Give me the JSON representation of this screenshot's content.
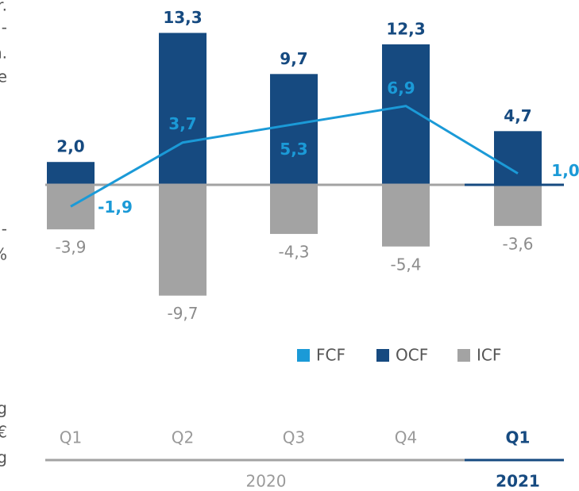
{
  "chart_data": {
    "type": "bar",
    "categories": [
      "Q1",
      "Q2",
      "Q3",
      "Q4",
      "Q1"
    ],
    "groups": [
      {
        "label": "2020",
        "span": [
          0,
          3
        ]
      },
      {
        "label": "2021",
        "span": [
          4,
          4
        ]
      }
    ],
    "series": [
      {
        "name": "FCF",
        "color": "#1b9ad7",
        "kind": "line",
        "values": [
          -1.9,
          3.7,
          5.3,
          6.9,
          1.0
        ],
        "value_labels": [
          "-1,9",
          "3,7",
          "5,3",
          "6,9",
          "1,0"
        ]
      },
      {
        "name": "OCF",
        "color": "#164a80",
        "kind": "bar",
        "values": [
          2.0,
          13.3,
          9.7,
          12.3,
          4.7
        ],
        "value_labels": [
          "2,0",
          "13,3",
          "9,7",
          "12,3",
          "4,7"
        ]
      },
      {
        "name": "ICF",
        "color": "#a3a3a3",
        "kind": "bar",
        "values": [
          -3.9,
          -9.7,
          -4.3,
          -5.4,
          -3.6
        ],
        "value_labels": [
          "-3,9",
          "-9,7",
          "-4,3",
          "-5,4",
          "-3,6"
        ]
      }
    ],
    "ylim": [
      -10,
      14
    ],
    "side_fragments": [
      "r.",
      "-",
      "n.",
      "e",
      "-",
      "%",
      "g",
      "€",
      "g"
    ]
  }
}
